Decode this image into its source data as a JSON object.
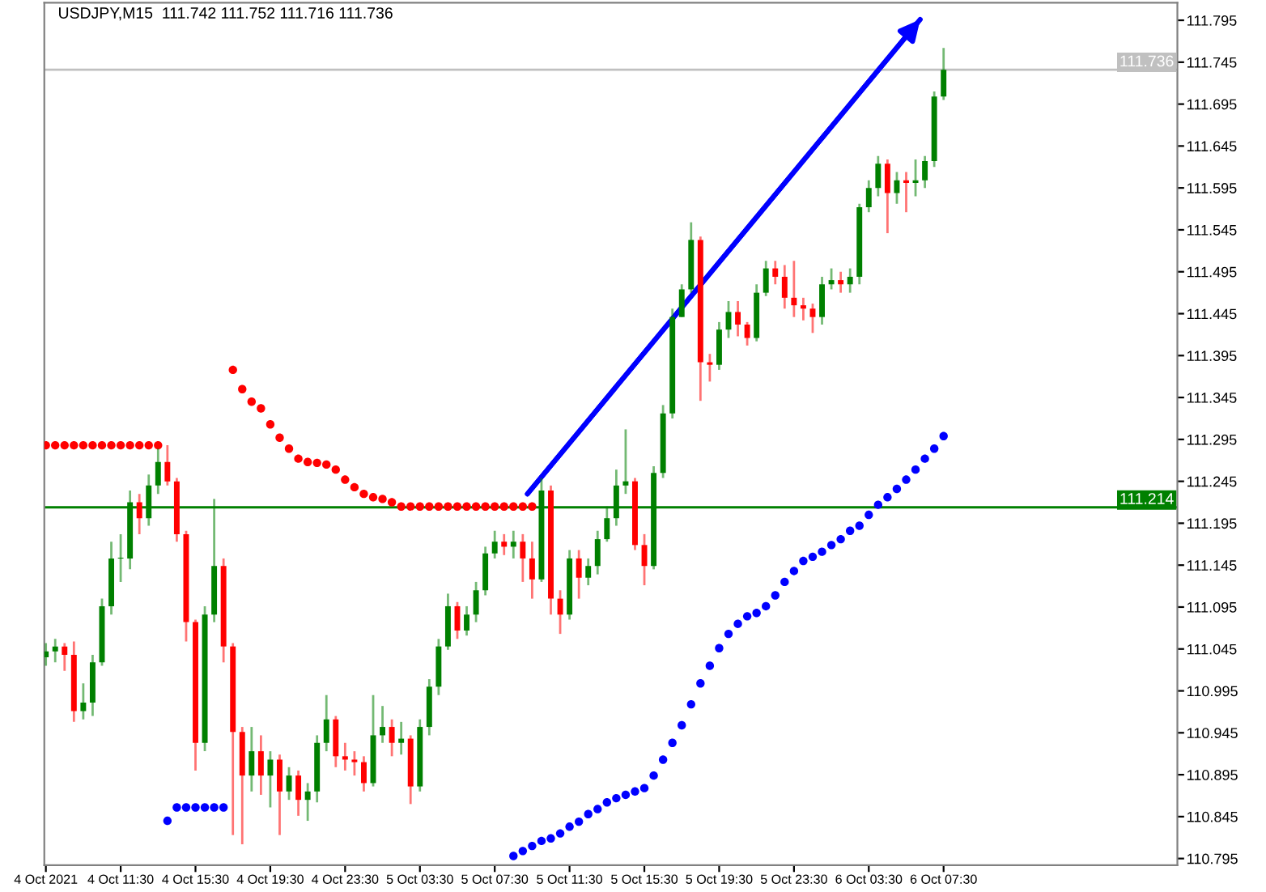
{
  "chart_data": {
    "type": "candlestick",
    "title": "USDJPY,M15  111.742 111.752 111.716 111.736",
    "series": [
      {
        "type": "candlestick",
        "x": [
          "2021-10-04T07:30",
          "2021-10-04T08:00",
          "2021-10-04T08:30",
          "2021-10-04T09:00",
          "2021-10-04T09:30",
          "2021-10-04T10:00",
          "2021-10-04T10:30",
          "2021-10-04T11:00",
          "2021-10-04T11:30",
          "2021-10-04T12:00",
          "2021-10-04T12:30",
          "2021-10-04T13:00",
          "2021-10-04T13:30",
          "2021-10-04T14:00",
          "2021-10-04T14:30",
          "2021-10-04T15:00",
          "2021-10-04T15:30",
          "2021-10-04T16:00",
          "2021-10-04T16:30",
          "2021-10-04T17:00",
          "2021-10-04T17:30",
          "2021-10-04T18:00",
          "2021-10-04T18:30",
          "2021-10-04T19:00",
          "2021-10-04T19:30",
          "2021-10-04T20:00",
          "2021-10-04T20:30",
          "2021-10-04T21:00",
          "2021-10-04T21:30",
          "2021-10-04T22:00",
          "2021-10-04T22:30",
          "2021-10-04T23:00",
          "2021-10-04T23:30",
          "2021-10-05T00:00",
          "2021-10-05T00:30",
          "2021-10-05T01:00",
          "2021-10-05T01:30",
          "2021-10-05T02:00",
          "2021-10-05T02:30",
          "2021-10-05T03:00",
          "2021-10-05T03:30",
          "2021-10-05T04:00",
          "2021-10-05T04:30",
          "2021-10-05T05:00",
          "2021-10-05T05:30",
          "2021-10-05T06:00",
          "2021-10-05T06:30",
          "2021-10-05T07:00",
          "2021-10-05T07:30",
          "2021-10-05T08:00",
          "2021-10-05T08:30",
          "2021-10-05T09:00",
          "2021-10-05T09:30",
          "2021-10-05T10:00",
          "2021-10-05T10:30",
          "2021-10-05T11:00",
          "2021-10-05T11:30",
          "2021-10-05T12:00",
          "2021-10-05T12:30",
          "2021-10-05T13:00",
          "2021-10-05T13:30",
          "2021-10-05T14:00",
          "2021-10-05T14:30",
          "2021-10-05T15:00",
          "2021-10-05T15:30",
          "2021-10-05T16:00",
          "2021-10-05T16:30",
          "2021-10-05T17:00",
          "2021-10-05T17:30",
          "2021-10-05T18:00",
          "2021-10-05T18:30",
          "2021-10-05T19:00",
          "2021-10-05T19:30",
          "2021-10-05T20:00",
          "2021-10-05T20:30",
          "2021-10-05T21:00",
          "2021-10-05T21:30",
          "2021-10-05T22:00",
          "2021-10-05T22:30",
          "2021-10-05T23:00",
          "2021-10-05T23:30",
          "2021-10-06T00:00",
          "2021-10-06T00:30",
          "2021-10-06T01:00",
          "2021-10-06T01:30",
          "2021-10-06T02:00",
          "2021-10-06T02:30",
          "2021-10-06T03:00",
          "2021-10-06T03:30",
          "2021-10-06T04:00",
          "2021-10-06T04:30",
          "2021-10-06T05:00",
          "2021-10-06T05:30",
          "2021-10-06T06:00",
          "2021-10-06T06:30",
          "2021-10-06T07:00",
          "2021-10-06T07:30"
        ],
        "ohlc": [
          [
            111.035,
            111.052,
            111.025,
            111.042
          ],
          [
            111.042,
            111.057,
            111.029,
            111.048
          ],
          [
            111.048,
            111.052,
            111.019,
            111.038
          ],
          [
            111.038,
            111.054,
            110.958,
            110.971
          ],
          [
            110.971,
            111.004,
            110.961,
            110.981
          ],
          [
            110.981,
            111.038,
            110.965,
            111.029
          ],
          [
            111.029,
            111.105,
            111.025,
            111.096
          ],
          [
            111.096,
            111.173,
            111.086,
            111.153
          ],
          [
            111.153,
            111.182,
            111.125,
            111.153
          ],
          [
            111.153,
            111.234,
            111.14,
            111.22
          ],
          [
            111.22,
            111.23,
            111.182,
            111.201
          ],
          [
            111.201,
            111.253,
            111.192,
            111.24
          ],
          [
            111.24,
            111.284,
            111.23,
            111.268
          ],
          [
            111.268,
            111.288,
            111.24,
            111.245
          ],
          [
            111.245,
            111.249,
            111.173,
            111.182
          ],
          [
            111.182,
            111.186,
            111.054,
            111.077
          ],
          [
            111.077,
            111.08,
            110.9,
            110.933
          ],
          [
            110.933,
            111.096,
            110.923,
            111.086
          ],
          [
            111.086,
            111.224,
            111.077,
            111.144
          ],
          [
            111.144,
            111.153,
            111.029,
            111.048
          ],
          [
            111.048,
            111.052,
            110.823,
            110.946
          ],
          [
            110.946,
            110.952,
            110.812,
            110.894
          ],
          [
            110.894,
            110.952,
            110.875,
            110.923
          ],
          [
            110.923,
            110.942,
            110.871,
            110.894
          ],
          [
            110.894,
            110.923,
            110.856,
            110.913
          ],
          [
            110.913,
            110.919,
            110.823,
            110.875
          ],
          [
            110.875,
            110.904,
            110.865,
            110.894
          ],
          [
            110.894,
            110.9,
            110.846,
            110.865
          ],
          [
            110.865,
            110.885,
            110.84,
            110.875
          ],
          [
            110.875,
            110.942,
            110.862,
            110.933
          ],
          [
            110.933,
            110.99,
            110.923,
            110.961
          ],
          [
            110.961,
            110.965,
            110.904,
            110.917
          ],
          [
            110.917,
            110.933,
            110.9,
            110.913
          ],
          [
            110.913,
            110.923,
            110.894,
            110.91
          ],
          [
            110.91,
            110.917,
            110.875,
            110.885
          ],
          [
            110.885,
            110.99,
            110.881,
            110.942
          ],
          [
            110.942,
            110.977,
            110.933,
            110.952
          ],
          [
            110.952,
            110.961,
            110.917,
            110.933
          ],
          [
            110.933,
            110.958,
            110.919,
            110.938
          ],
          [
            110.938,
            110.942,
            110.86,
            110.881
          ],
          [
            110.881,
            110.961,
            110.875,
            110.952
          ],
          [
            110.952,
            111.009,
            110.942,
            111.0
          ],
          [
            111.0,
            111.057,
            110.99,
            111.048
          ],
          [
            111.048,
            111.111,
            111.044,
            111.096
          ],
          [
            111.096,
            111.101,
            111.057,
            111.067
          ],
          [
            111.067,
            111.096,
            111.061,
            111.086
          ],
          [
            111.086,
            111.125,
            111.077,
            111.115
          ],
          [
            111.115,
            111.167,
            111.109,
            111.159
          ],
          [
            111.159,
            111.186,
            111.153,
            111.173
          ],
          [
            111.173,
            111.182,
            111.157,
            111.167
          ],
          [
            111.167,
            111.186,
            111.153,
            111.173
          ],
          [
            111.173,
            111.182,
            111.125,
            111.153
          ],
          [
            111.153,
            111.173,
            111.105,
            111.128
          ],
          [
            111.128,
            111.249,
            111.125,
            111.234
          ],
          [
            111.234,
            111.24,
            111.086,
            111.105
          ],
          [
            111.105,
            111.115,
            111.063,
            111.086
          ],
          [
            111.086,
            111.163,
            111.08,
            111.153
          ],
          [
            111.153,
            111.163,
            111.105,
            111.13
          ],
          [
            111.13,
            111.153,
            111.121,
            111.144
          ],
          [
            111.144,
            111.186,
            111.134,
            111.176
          ],
          [
            111.176,
            111.215,
            111.173,
            111.201
          ],
          [
            111.201,
            111.259,
            111.192,
            111.24
          ],
          [
            111.24,
            111.307,
            111.23,
            111.245
          ],
          [
            111.245,
            111.249,
            111.163,
            111.169
          ],
          [
            111.169,
            111.182,
            111.121,
            111.144
          ],
          [
            111.144,
            111.263,
            111.14,
            111.255
          ],
          [
            111.255,
            111.336,
            111.249,
            111.326
          ],
          [
            111.326,
            111.451,
            111.32,
            111.441
          ],
          [
            111.441,
            111.48,
            111.441,
            111.474
          ],
          [
            111.474,
            111.554,
            111.47,
            111.533
          ],
          [
            111.533,
            111.537,
            111.341,
            111.387
          ],
          [
            111.387,
            111.397,
            111.364,
            111.384
          ],
          [
            111.384,
            111.435,
            111.378,
            111.426
          ],
          [
            111.426,
            111.46,
            111.416,
            111.447
          ],
          [
            111.447,
            111.46,
            111.418,
            111.432
          ],
          [
            111.432,
            111.435,
            111.407,
            111.416
          ],
          [
            111.416,
            111.48,
            111.412,
            111.47
          ],
          [
            111.47,
            111.508,
            111.466,
            111.499
          ],
          [
            111.499,
            111.508,
            111.48,
            111.489
          ],
          [
            111.489,
            111.503,
            111.451,
            111.464
          ],
          [
            111.464,
            111.508,
            111.441,
            111.455
          ],
          [
            111.455,
            111.464,
            111.437,
            111.451
          ],
          [
            111.451,
            111.457,
            111.422,
            111.441
          ],
          [
            111.441,
            111.489,
            111.432,
            111.48
          ],
          [
            111.48,
            111.499,
            111.474,
            111.485
          ],
          [
            111.485,
            111.495,
            111.47,
            111.48
          ],
          [
            111.48,
            111.499,
            111.47,
            111.489
          ],
          [
            111.489,
            111.576,
            111.48,
            111.572
          ],
          [
            111.572,
            111.604,
            111.566,
            111.595
          ],
          [
            111.595,
            111.633,
            111.585,
            111.624
          ],
          [
            111.624,
            111.629,
            111.541,
            111.589
          ],
          [
            111.589,
            111.614,
            111.576,
            111.604
          ],
          [
            111.604,
            111.614,
            111.566,
            111.601
          ],
          [
            111.601,
            111.629,
            111.585,
            111.604
          ],
          [
            111.604,
            111.633,
            111.595,
            111.627
          ],
          [
            111.627,
            111.71,
            111.62,
            111.704
          ],
          [
            111.704,
            111.762,
            111.7,
            111.736
          ]
        ],
        "colors": [
          "#008000",
          "#008000",
          "#ff0000",
          "#ff0000",
          "#008000",
          "#008000",
          "#008000",
          "#008000",
          "#008000",
          "#008000",
          "#ff0000",
          "#008000",
          "#008000",
          "#ff0000",
          "#ff0000",
          "#ff0000",
          "#ff0000",
          "#008000",
          "#008000",
          "#ff0000",
          "#ff0000",
          "#ff0000",
          "#008000",
          "#ff0000",
          "#008000",
          "#ff0000",
          "#008000",
          "#ff0000",
          "#008000",
          "#008000",
          "#008000",
          "#ff0000",
          "#ff0000",
          "#ff0000",
          "#ff0000",
          "#008000",
          "#008000",
          "#ff0000",
          "#008000",
          "#ff0000",
          "#008000",
          "#008000",
          "#008000",
          "#008000",
          "#ff0000",
          "#008000",
          "#008000",
          "#008000",
          "#008000",
          "#ff0000",
          "#008000",
          "#ff0000",
          "#ff0000",
          "#008000",
          "#ff0000",
          "#ff0000",
          "#008000",
          "#ff0000",
          "#008000",
          "#008000",
          "#008000",
          "#008000",
          "#008000",
          "#ff0000",
          "#ff0000",
          "#008000",
          "#008000",
          "#008000",
          "#008000",
          "#008000",
          "#ff0000",
          "#ff0000",
          "#008000",
          "#008000",
          "#ff0000",
          "#ff0000",
          "#008000",
          "#008000",
          "#ff0000",
          "#ff0000",
          "#ff0000",
          "#ff0000",
          "#ff0000",
          "#008000",
          "#008000",
          "#ff0000",
          "#008000",
          "#008000",
          "#008000",
          "#008000",
          "#ff0000",
          "#008000",
          "#ff0000",
          "#008000",
          "#008000",
          "#008000",
          "#008000"
        ]
      },
      {
        "type": "scatter",
        "color": "#ff0000",
        "marker": "circle",
        "x": [
          "2021-10-04T07:30",
          "2021-10-04T08:00",
          "2021-10-04T08:30",
          "2021-10-04T09:00",
          "2021-10-04T09:30",
          "2021-10-04T10:00",
          "2021-10-04T10:30",
          "2021-10-04T11:00",
          "2021-10-04T11:30",
          "2021-10-04T12:00",
          "2021-10-04T12:30",
          "2021-10-04T13:00",
          "2021-10-04T13:30",
          "2021-10-04T17:30",
          "2021-10-04T18:00",
          "2021-10-04T18:30",
          "2021-10-04T19:00",
          "2021-10-04T19:30",
          "2021-10-04T20:00",
          "2021-10-04T20:30",
          "2021-10-04T21:00",
          "2021-10-04T21:30",
          "2021-10-04T22:00",
          "2021-10-04T22:30",
          "2021-10-04T23:00",
          "2021-10-04T23:30",
          "2021-10-05T00:00",
          "2021-10-05T00:30",
          "2021-10-05T01:00",
          "2021-10-05T01:30",
          "2021-10-05T02:00",
          "2021-10-05T02:30",
          "2021-10-05T03:00",
          "2021-10-05T03:30",
          "2021-10-05T04:00",
          "2021-10-05T04:30",
          "2021-10-05T05:00",
          "2021-10-05T05:30",
          "2021-10-05T06:00",
          "2021-10-05T06:30",
          "2021-10-05T07:00",
          "2021-10-05T07:30",
          "2021-10-05T08:00",
          "2021-10-05T08:30",
          "2021-10-05T09:00",
          "2021-10-05T09:30"
        ],
        "values": [
          111.288,
          111.288,
          111.288,
          111.288,
          111.288,
          111.288,
          111.288,
          111.288,
          111.288,
          111.288,
          111.288,
          111.288,
          111.288,
          111.378,
          111.355,
          111.34,
          111.332,
          111.313,
          111.297,
          111.284,
          111.272,
          111.268,
          111.267,
          111.265,
          111.259,
          111.247,
          111.238,
          111.23,
          111.226,
          111.224,
          111.22,
          111.215,
          111.215,
          111.215,
          111.215,
          111.215,
          111.215,
          111.215,
          111.215,
          111.215,
          111.215,
          111.215,
          111.215,
          111.215,
          111.215,
          111.215
        ]
      },
      {
        "type": "scatter",
        "color": "#0000ff",
        "marker": "circle",
        "x": [
          "2021-10-04T14:00",
          "2021-10-04T14:30",
          "2021-10-04T15:00",
          "2021-10-04T15:30",
          "2021-10-04T16:00",
          "2021-10-04T16:30",
          "2021-10-04T17:00",
          "2021-10-05T08:30",
          "2021-10-05T09:00",
          "2021-10-05T09:30",
          "2021-10-05T10:00",
          "2021-10-05T10:30",
          "2021-10-05T11:00",
          "2021-10-05T11:30",
          "2021-10-05T12:00",
          "2021-10-05T12:30",
          "2021-10-05T13:00",
          "2021-10-05T13:30",
          "2021-10-05T14:00",
          "2021-10-05T14:30",
          "2021-10-05T15:00",
          "2021-10-05T15:30",
          "2021-10-05T16:00",
          "2021-10-05T16:30",
          "2021-10-05T17:00",
          "2021-10-05T17:30",
          "2021-10-05T18:00",
          "2021-10-05T18:30",
          "2021-10-05T19:00",
          "2021-10-05T19:30",
          "2021-10-05T20:00",
          "2021-10-05T20:30",
          "2021-10-05T21:00",
          "2021-10-05T21:30",
          "2021-10-05T22:00",
          "2021-10-05T22:30",
          "2021-10-05T23:00",
          "2021-10-05T23:30",
          "2021-10-06T00:00",
          "2021-10-06T00:30",
          "2021-10-06T01:00",
          "2021-10-06T01:30",
          "2021-10-06T02:00",
          "2021-10-06T02:30",
          "2021-10-06T03:00",
          "2021-10-06T03:30",
          "2021-10-06T04:00",
          "2021-10-06T04:30",
          "2021-10-06T05:00",
          "2021-10-06T05:30",
          "2021-10-06T06:00",
          "2021-10-06T06:30",
          "2021-10-06T07:00",
          "2021-10-06T07:30"
        ],
        "values": [
          110.84,
          110.856,
          110.856,
          110.856,
          110.856,
          110.856,
          110.856,
          110.798,
          110.804,
          110.81,
          110.816,
          110.819,
          110.825,
          110.833,
          110.839,
          110.848,
          110.854,
          110.862,
          110.867,
          110.871,
          110.875,
          110.879,
          110.894,
          110.913,
          110.933,
          110.954,
          110.979,
          111.004,
          111.025,
          111.046,
          111.063,
          111.075,
          111.084,
          111.088,
          111.096,
          111.109,
          111.125,
          111.138,
          111.15,
          111.155,
          111.161,
          111.169,
          111.176,
          111.186,
          111.192,
          111.205,
          111.217,
          111.226,
          111.236,
          111.247,
          111.259,
          111.272,
          111.284,
          111.299
        ]
      },
      {
        "type": "line",
        "color": "#0000ff",
        "marker": "none",
        "x": [
          "2021-10-05T09:15",
          "2021-10-06T06:15"
        ],
        "values": [
          111.23,
          111.796
        ]
      }
    ],
    "ref_lines": [
      {
        "axis": "y",
        "value": 111.214,
        "label": "111.214",
        "color": "#008000"
      },
      {
        "axis": "y",
        "value": 111.736,
        "label": "111.736",
        "color": "#c0c0c0"
      }
    ],
    "xlim": [
      "2021-10-04T07:25",
      "2021-10-06T20:00"
    ],
    "xticks": [
      {
        "value": "2021-10-04T07:30",
        "label": "4 Oct 2021"
      },
      {
        "value": "2021-10-04T11:30",
        "label": "4 Oct 11:30"
      },
      {
        "value": "2021-10-04T15:30",
        "label": "4 Oct 15:30"
      },
      {
        "value": "2021-10-04T19:30",
        "label": "4 Oct 19:30"
      },
      {
        "value": "2021-10-04T23:30",
        "label": "4 Oct 23:30"
      },
      {
        "value": "2021-10-05T03:30",
        "label": "5 Oct 03:30"
      },
      {
        "value": "2021-10-05T07:30",
        "label": "5 Oct 07:30"
      },
      {
        "value": "2021-10-05T11:30",
        "label": "5 Oct 11:30"
      },
      {
        "value": "2021-10-05T15:30",
        "label": "5 Oct 15:30"
      },
      {
        "value": "2021-10-05T19:30",
        "label": "5 Oct 19:30"
      },
      {
        "value": "2021-10-05T23:30",
        "label": "5 Oct 23:30"
      },
      {
        "value": "2021-10-06T03:30",
        "label": "6 Oct 03:30"
      },
      {
        "value": "2021-10-06T07:30",
        "label": "6 Oct 07:30"
      }
    ],
    "ylim": [
      110.787,
      111.816
    ],
    "yticks": [
      110.795,
      110.845,
      110.895,
      110.945,
      110.995,
      111.045,
      111.095,
      111.145,
      111.195,
      111.245,
      111.295,
      111.345,
      111.395,
      111.445,
      111.495,
      111.545,
      111.595,
      111.645,
      111.695,
      111.745,
      111.795
    ],
    "grid": false,
    "legend": false
  }
}
